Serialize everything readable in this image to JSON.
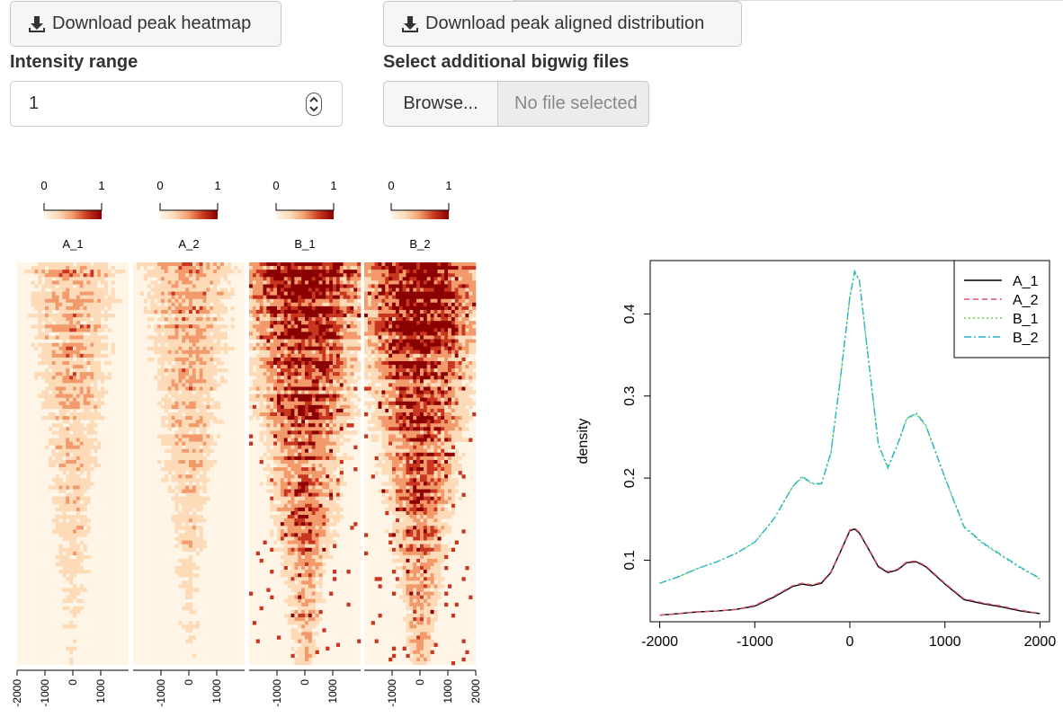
{
  "toolbar": {
    "download_heatmap_label": "Download peak heatmap",
    "download_distribution_label": "Download peak aligned distribution"
  },
  "intensity": {
    "label": "Intensity range",
    "value": "1"
  },
  "bigwig": {
    "label": "Select additional bigwig files",
    "browse_label": "Browse...",
    "file_placeholder": "No file selected"
  },
  "heatmap": {
    "legend_min": "0",
    "legend_max": "1",
    "panels": [
      {
        "name": "A_1",
        "x_ticks": [
          "-2000",
          "-1000",
          "0",
          "1000"
        ],
        "intensity": "low"
      },
      {
        "name": "A_2",
        "x_ticks": [
          "-1000",
          "0",
          "1000"
        ],
        "intensity": "low"
      },
      {
        "name": "B_1",
        "x_ticks": [
          "-1000",
          "0",
          "1000"
        ],
        "intensity": "high"
      },
      {
        "name": "B_2",
        "x_ticks": [
          "-1000",
          "0",
          "1000",
          "2000"
        ],
        "intensity": "high"
      }
    ],
    "colors": [
      "#fff5e6",
      "#fddbb8",
      "#f29a6b",
      "#c8361f",
      "#8b0000"
    ]
  },
  "chart_data": {
    "type": "line",
    "ylabel": "density",
    "xlabel": "",
    "xlim": [
      -2000,
      2000
    ],
    "ylim": [
      0.03,
      0.46
    ],
    "x_ticks": [
      -2000,
      -1000,
      0,
      1000,
      2000
    ],
    "y_ticks": [
      0.1,
      0.2,
      0.3,
      0.4
    ],
    "legend_position": "top-right",
    "x": [
      -2000,
      -1800,
      -1600,
      -1400,
      -1200,
      -1000,
      -800,
      -600,
      -500,
      -400,
      -300,
      -200,
      -100,
      0,
      50,
      100,
      200,
      300,
      400,
      500,
      600,
      700,
      800,
      1000,
      1200,
      1400,
      1600,
      1800,
      2000
    ],
    "series": [
      {
        "name": "A_1",
        "color": "#000000",
        "dash": "",
        "values": [
          0.033,
          0.035,
          0.037,
          0.038,
          0.04,
          0.044,
          0.055,
          0.068,
          0.071,
          0.069,
          0.072,
          0.085,
          0.11,
          0.136,
          0.138,
          0.133,
          0.113,
          0.092,
          0.085,
          0.088,
          0.097,
          0.098,
          0.092,
          0.071,
          0.052,
          0.047,
          0.043,
          0.038,
          0.035
        ]
      },
      {
        "name": "A_2",
        "color": "#df536b",
        "dash": "6,4",
        "values": [
          0.033,
          0.035,
          0.037,
          0.038,
          0.04,
          0.045,
          0.056,
          0.069,
          0.072,
          0.07,
          0.073,
          0.086,
          0.111,
          0.137,
          0.139,
          0.134,
          0.114,
          0.093,
          0.086,
          0.089,
          0.098,
          0.099,
          0.093,
          0.072,
          0.053,
          0.048,
          0.044,
          0.039,
          0.035
        ]
      },
      {
        "name": "B_1",
        "color": "#61d04f",
        "dash": "2,3",
        "values": [
          0.072,
          0.08,
          0.09,
          0.098,
          0.108,
          0.122,
          0.15,
          0.19,
          0.201,
          0.193,
          0.192,
          0.23,
          0.32,
          0.42,
          0.451,
          0.44,
          0.34,
          0.24,
          0.212,
          0.24,
          0.272,
          0.278,
          0.263,
          0.2,
          0.14,
          0.12,
          0.105,
          0.09,
          0.077
        ]
      },
      {
        "name": "B_2",
        "color": "#28b5c9",
        "dash": "8,3,2,3",
        "values": [
          0.072,
          0.08,
          0.09,
          0.098,
          0.108,
          0.122,
          0.15,
          0.19,
          0.202,
          0.194,
          0.193,
          0.231,
          0.321,
          0.421,
          0.452,
          0.441,
          0.341,
          0.241,
          0.213,
          0.241,
          0.273,
          0.279,
          0.264,
          0.201,
          0.141,
          0.121,
          0.106,
          0.091,
          0.078
        ]
      }
    ]
  }
}
